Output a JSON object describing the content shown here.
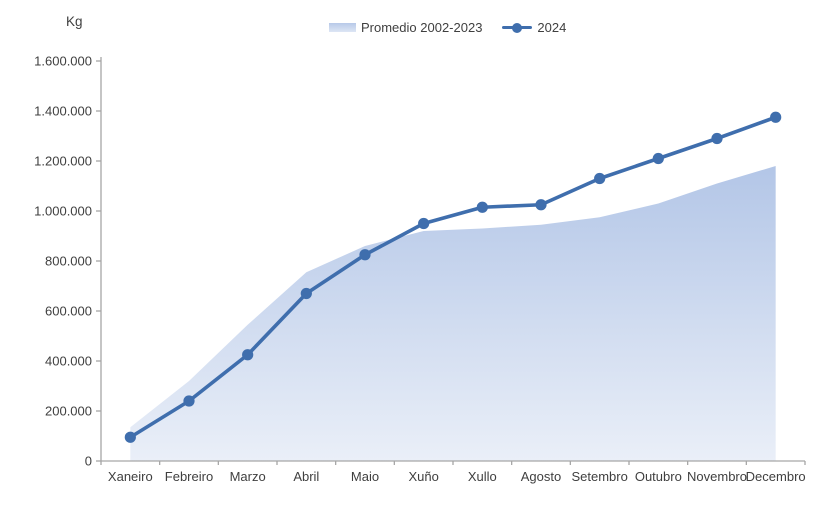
{
  "chart_data": {
    "type": "area+line",
    "title": "",
    "ylabel": "Kg",
    "xlabel": "",
    "categories": [
      "Xaneiro",
      "Febreiro",
      "Marzo",
      "Abril",
      "Maio",
      "Xuño",
      "Xullo",
      "Agosto",
      "Setembro",
      "Outubro",
      "Novembro",
      "Decembro"
    ],
    "series": [
      {
        "name": "Promedio 2002-2023",
        "type": "area",
        "color_top": "#b3c6e7",
        "color_bottom": "#eaeff8",
        "values": [
          135000,
          320000,
          545000,
          755000,
          860000,
          920000,
          930000,
          945000,
          975000,
          1030000,
          1110000,
          1180000
        ]
      },
      {
        "name": "2024",
        "type": "line",
        "color": "#3f6ead",
        "values": [
          95000,
          240000,
          425000,
          670000,
          825000,
          950000,
          1015000,
          1025000,
          1130000,
          1210000,
          1290000,
          1375000
        ]
      }
    ],
    "ylim": [
      0,
      1600000
    ],
    "ytick_step": 200000,
    "ytick_labels": [
      "0",
      "200.000",
      "400.000",
      "600.000",
      "800.000",
      "1.000.000",
      "1.200.000",
      "1.400.000",
      "1.600.000"
    ],
    "grid": false,
    "legend_position": "top",
    "axis_color": "#a6a6a6",
    "text_color": "#3f3f3f"
  }
}
